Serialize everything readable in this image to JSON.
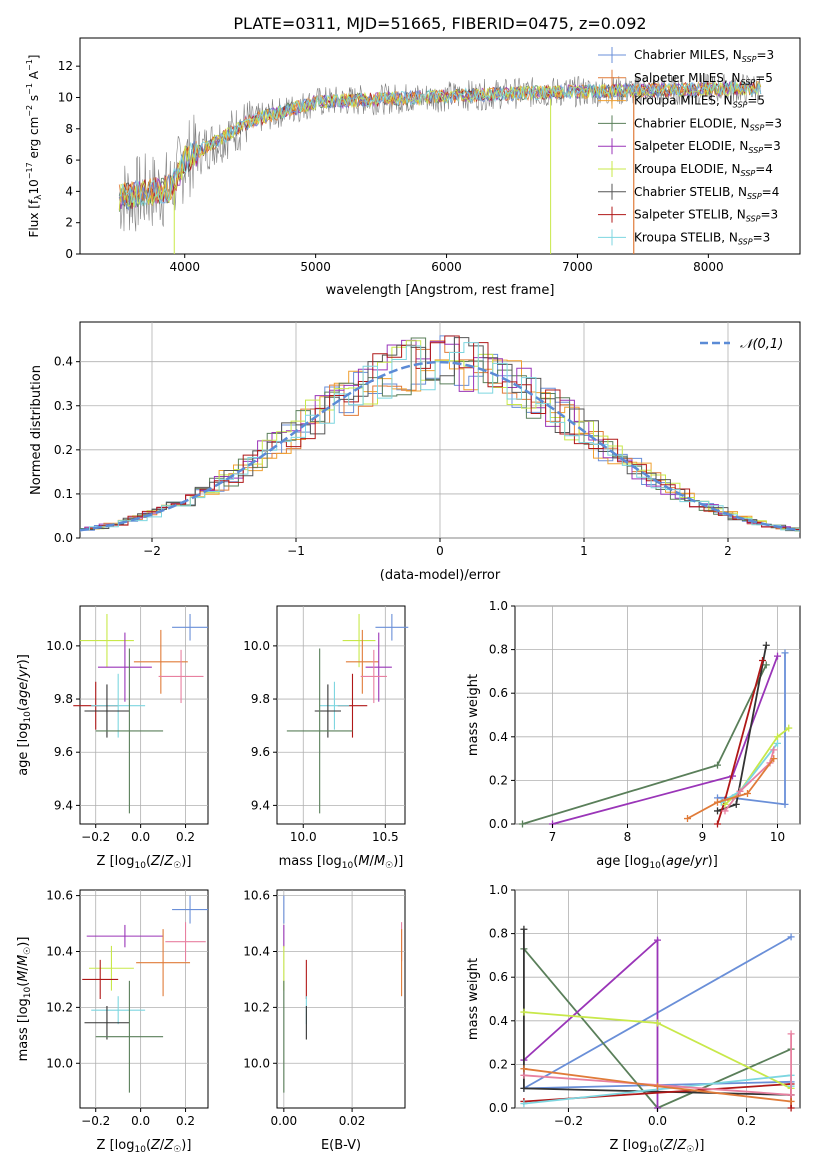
{
  "chart_data": [
    {
      "id": "spectrum",
      "type": "line",
      "title": "PLATE=0311, MJD=51665, FIBERID=0475, z=0.092",
      "xlabel": "wavelength [Angstrom, rest frame]",
      "ylabel": "Flux [f_λ10^-17 erg cm^-2 s^-1 A^-1]",
      "xlim": [
        3200,
        8700
      ],
      "ylim": [
        0,
        13.8
      ],
      "xticks": [
        4000,
        5000,
        6000,
        7000,
        8000
      ],
      "yticks": [
        0,
        2,
        4,
        6,
        8,
        10,
        12
      ],
      "legend_position": "top-right",
      "series": [
        {
          "name": "Chabrier MILES, N_SSP=3",
          "color": "#6a8fd8"
        },
        {
          "name": "Salpeter MILES, N_SSP=5",
          "color": "#e07b39"
        },
        {
          "name": "Kroupa MILES, N_SSP=5",
          "color": "#f0a030"
        },
        {
          "name": "Chabrier ELODIE, N_SSP=3",
          "color": "#5a7f5a"
        },
        {
          "name": "Salpeter ELODIE, N_SSP=3",
          "color": "#9a35b8"
        },
        {
          "name": "Kroupa ELODIE, N_SSP=4",
          "color": "#c8e84a"
        },
        {
          "name": "Chabrier STELIB, N_SSP=4",
          "color": "#555555"
        },
        {
          "name": "Salpeter STELIB, N_SSP=3",
          "color": "#b01818"
        },
        {
          "name": "Kroupa STELIB, N_SSP=3",
          "color": "#7dd6e0"
        }
      ],
      "data_color": "#808080"
    },
    {
      "id": "residuals",
      "type": "line",
      "xlabel": "(data-model)/error",
      "ylabel": "Normed distribution",
      "xlim": [
        -2.5,
        2.5
      ],
      "ylim": [
        0,
        0.49
      ],
      "xticks": [
        -2,
        -1,
        0,
        1,
        2
      ],
      "yticks": [
        0.0,
        0.1,
        0.2,
        0.3,
        0.4
      ],
      "grid": true,
      "legend": "𝒩(0,1)",
      "legend_position": "top-right",
      "gaussian_color": "#5b8bd6"
    },
    {
      "id": "z-age",
      "type": "scatter",
      "xlabel": "Z [log10(Z/Z☉)]",
      "ylabel": "age [log10(age/yr)]",
      "xlim": [
        -0.27,
        0.3
      ],
      "ylim": [
        9.33,
        10.15
      ],
      "xticks": [
        -0.2,
        0.0,
        0.2
      ],
      "yticks": [
        9.4,
        9.6,
        9.8,
        10.0
      ],
      "grid": true,
      "points": [
        {
          "x": 0.22,
          "y": 10.07,
          "xerr": 0.08,
          "yerr": 0.05,
          "color": "#6a8fd8"
        },
        {
          "x": -0.15,
          "y": 10.02,
          "xerr": 0.12,
          "yerr": 0.1,
          "color": "#c8e84a"
        },
        {
          "x": 0.09,
          "y": 9.94,
          "xerr": 0.12,
          "yerr": 0.12,
          "color": "#e07b39"
        },
        {
          "x": -0.07,
          "y": 9.92,
          "xerr": 0.12,
          "yerr": 0.13,
          "color": "#9a35b8"
        },
        {
          "x": 0.18,
          "y": 9.885,
          "xerr": 0.1,
          "yerr": 0.1,
          "color": "#e880a0"
        },
        {
          "x": -0.2,
          "y": 9.775,
          "xerr": 0.1,
          "yerr": 0.09,
          "color": "#b01818"
        },
        {
          "x": -0.1,
          "y": 9.775,
          "xerr": 0.12,
          "yerr": 0.12,
          "color": "#7dd6e0"
        },
        {
          "x": -0.15,
          "y": 9.755,
          "xerr": 0.1,
          "yerr": 0.1,
          "color": "#333333"
        },
        {
          "x": -0.05,
          "y": 9.68,
          "xerr": 0.15,
          "yerr": 0.31,
          "color": "#5a7f5a"
        }
      ]
    },
    {
      "id": "mass-age",
      "type": "scatter",
      "xlabel": "mass [log10(M/M☉)]",
      "ylabel": "",
      "xlim": [
        9.84,
        10.62
      ],
      "ylim": [
        9.33,
        10.15
      ],
      "xticks": [
        10.0,
        10.5
      ],
      "yticks": [
        9.4,
        9.6,
        9.8,
        10.0
      ],
      "grid": true,
      "points": [
        {
          "x": 10.54,
          "y": 10.07,
          "xerr": 0.1,
          "yerr": 0.05,
          "color": "#6a8fd8"
        },
        {
          "x": 10.34,
          "y": 10.02,
          "xerr": 0.1,
          "yerr": 0.1,
          "color": "#c8e84a"
        },
        {
          "x": 10.36,
          "y": 9.94,
          "xerr": 0.1,
          "yerr": 0.12,
          "color": "#e07b39"
        },
        {
          "x": 10.46,
          "y": 9.92,
          "xerr": 0.08,
          "yerr": 0.13,
          "color": "#9a35b8"
        },
        {
          "x": 10.43,
          "y": 9.885,
          "xerr": 0.08,
          "yerr": 0.1,
          "color": "#e880a0"
        },
        {
          "x": 10.3,
          "y": 9.775,
          "xerr": 0.09,
          "yerr": 0.12,
          "color": "#b01818"
        },
        {
          "x": 10.19,
          "y": 9.775,
          "xerr": 0.09,
          "yerr": 0.09,
          "color": "#7dd6e0"
        },
        {
          "x": 10.15,
          "y": 9.755,
          "xerr": 0.08,
          "yerr": 0.1,
          "color": "#333333"
        },
        {
          "x": 10.1,
          "y": 9.68,
          "xerr": 0.2,
          "yerr": 0.31,
          "color": "#5a7f5a"
        }
      ]
    },
    {
      "id": "age-weight",
      "type": "line",
      "xlabel": "age [log10(age/yr)]",
      "ylabel": "mass weight",
      "xlim": [
        6.5,
        10.3
      ],
      "ylim": [
        0,
        1.0
      ],
      "xticks": [
        7,
        8,
        9,
        10
      ],
      "yticks": [
        0.0,
        0.2,
        0.4,
        0.6,
        0.8,
        1.0
      ],
      "grid": true,
      "series": [
        {
          "color": "#6a8fd8",
          "x": [
            10.1,
            10.1,
            9.4,
            9.2
          ],
          "y": [
            0.785,
            0.09,
            0.12,
            0.12
          ]
        },
        {
          "color": "#5a7f5a",
          "x": [
            9.85,
            9.2,
            6.6
          ],
          "y": [
            0.73,
            0.27,
            0.0
          ]
        },
        {
          "color": "#9a35b8",
          "x": [
            10.0,
            9.4,
            7.0
          ],
          "y": [
            0.77,
            0.22,
            0.0
          ]
        },
        {
          "color": "#333333",
          "x": [
            9.85,
            9.45,
            9.2
          ],
          "y": [
            0.82,
            0.09,
            0.06
          ]
        },
        {
          "color": "#b01818",
          "x": [
            9.8,
            9.3,
            9.2
          ],
          "y": [
            0.75,
            0.11,
            0.0
          ]
        },
        {
          "color": "#c8e84a",
          "x": [
            10.15,
            10.0,
            9.5,
            9.3
          ],
          "y": [
            0.44,
            0.4,
            0.15,
            0.09
          ]
        },
        {
          "color": "#7dd6e0",
          "x": [
            10.0,
            9.5,
            9.25
          ],
          "y": [
            0.37,
            0.15,
            0.1
          ]
        },
        {
          "color": "#e880a0",
          "x": [
            9.95,
            9.9,
            9.5,
            9.3
          ],
          "y": [
            0.34,
            0.28,
            0.15,
            0.06
          ]
        },
        {
          "color": "#e07b39",
          "x": [
            9.95,
            9.6,
            9.2,
            8.8
          ],
          "y": [
            0.3,
            0.14,
            0.1,
            0.025
          ]
        }
      ]
    },
    {
      "id": "z-mass",
      "type": "scatter",
      "xlabel": "Z [log10(Z/Z☉)]",
      "ylabel": "mass [log10(M/M☉)]",
      "xlim": [
        -0.27,
        0.3
      ],
      "ylim": [
        9.84,
        10.62
      ],
      "xticks": [
        -0.2,
        0.0,
        0.2
      ],
      "yticks": [
        10.0,
        10.2,
        10.4,
        10.6
      ],
      "grid": true,
      "points": [
        {
          "x": 0.22,
          "y": 10.55,
          "xerr": 0.08,
          "yerr": 0.05,
          "color": "#6a8fd8"
        },
        {
          "x": -0.07,
          "y": 10.455,
          "xerr": 0.17,
          "yerr": 0.04,
          "color": "#9a35b8"
        },
        {
          "x": 0.2,
          "y": 10.435,
          "xerr": 0.09,
          "yerr": 0.07,
          "color": "#e880a0"
        },
        {
          "x": 0.1,
          "y": 10.36,
          "xerr": 0.12,
          "yerr": 0.12,
          "color": "#e07b39"
        },
        {
          "x": -0.13,
          "y": 10.34,
          "xerr": 0.1,
          "yerr": 0.08,
          "color": "#c8e84a"
        },
        {
          "x": -0.18,
          "y": 10.3,
          "xerr": 0.08,
          "yerr": 0.07,
          "color": "#b01818"
        },
        {
          "x": -0.1,
          "y": 10.19,
          "xerr": 0.12,
          "yerr": 0.05,
          "color": "#7dd6e0"
        },
        {
          "x": -0.15,
          "y": 10.145,
          "xerr": 0.1,
          "yerr": 0.06,
          "color": "#333333"
        },
        {
          "x": -0.05,
          "y": 10.095,
          "xerr": 0.15,
          "yerr": 0.2,
          "color": "#5a7f5a"
        }
      ]
    },
    {
      "id": "ebv-mass",
      "type": "scatter",
      "xlabel": "E(B-V)",
      "ylabel": "",
      "xlim": [
        -0.002,
        0.0355
      ],
      "ylim": [
        9.84,
        10.62
      ],
      "xticks": [
        0.0,
        0.02
      ],
      "yticks": [
        10.0,
        10.2,
        10.4,
        10.6
      ],
      "grid": true,
      "points": [
        {
          "x": 0.0,
          "y": 10.55,
          "xerr": 0,
          "yerr": 0.05,
          "color": "#6a8fd8"
        },
        {
          "x": 0.0,
          "y": 10.455,
          "xerr": 0,
          "yerr": 0.04,
          "color": "#9a35b8"
        },
        {
          "x": 0.0,
          "y": 10.34,
          "xerr": 0,
          "yerr": 0.08,
          "color": "#c8e84a"
        },
        {
          "x": 0.0,
          "y": 10.095,
          "xerr": 0,
          "yerr": 0.2,
          "color": "#5a7f5a"
        },
        {
          "x": 0.0066,
          "y": 10.3,
          "xerr": 0,
          "yerr": 0.07,
          "color": "#b01818"
        },
        {
          "x": 0.0066,
          "y": 10.19,
          "xerr": 0,
          "yerr": 0.05,
          "color": "#7dd6e0"
        },
        {
          "x": 0.0066,
          "y": 10.145,
          "xerr": 0,
          "yerr": 0.06,
          "color": "#333333"
        },
        {
          "x": 0.0345,
          "y": 10.435,
          "xerr": 0,
          "yerr": 0.07,
          "color": "#e880a0"
        },
        {
          "x": 0.0345,
          "y": 10.36,
          "xerr": 0,
          "yerr": 0.12,
          "color": "#e07b39"
        }
      ]
    },
    {
      "id": "z-weight",
      "type": "line",
      "xlabel": "Z [log10(Z/Z☉)]",
      "ylabel": "mass weight",
      "xlim": [
        -0.32,
        0.32
      ],
      "ylim": [
        0,
        1.0
      ],
      "xticks": [
        -0.2,
        0.0,
        0.2
      ],
      "yticks": [
        0.0,
        0.2,
        0.4,
        0.6,
        0.8,
        1.0
      ],
      "grid": true,
      "series": [
        {
          "color": "#6a8fd8",
          "x": [
            0.3,
            -0.3,
            0.3
          ],
          "y": [
            0.785,
            0.09,
            0.12
          ]
        },
        {
          "color": "#5a7f5a",
          "x": [
            -0.3,
            0.0,
            0.3
          ],
          "y": [
            0.73,
            0.0,
            0.27
          ]
        },
        {
          "color": "#9a35b8",
          "x": [
            -0.3,
            0.0,
            0.0
          ],
          "y": [
            0.22,
            0.77,
            0.0
          ]
        },
        {
          "color": "#333333",
          "x": [
            -0.3,
            -0.3,
            0.3
          ],
          "y": [
            0.82,
            0.09,
            0.06
          ]
        },
        {
          "color": "#b01818",
          "x": [
            -0.3,
            0.3,
            0.3
          ],
          "y": [
            0.03,
            0.11,
            0.0
          ]
        },
        {
          "color": "#c8e84a",
          "x": [
            -0.3,
            0.0,
            0.3
          ],
          "y": [
            0.44,
            0.39,
            0.09
          ]
        },
        {
          "color": "#7dd6e0",
          "x": [
            -0.3,
            0.3,
            0.3
          ],
          "y": [
            0.02,
            0.15,
            0.1
          ]
        },
        {
          "color": "#e880a0",
          "x": [
            -0.3,
            0.3,
            0.3
          ],
          "y": [
            0.15,
            0.06,
            0.34
          ]
        },
        {
          "color": "#e07b39",
          "x": [
            -0.3,
            0.0,
            0.3
          ],
          "y": [
            0.18,
            0.1,
            0.03
          ]
        }
      ]
    }
  ]
}
